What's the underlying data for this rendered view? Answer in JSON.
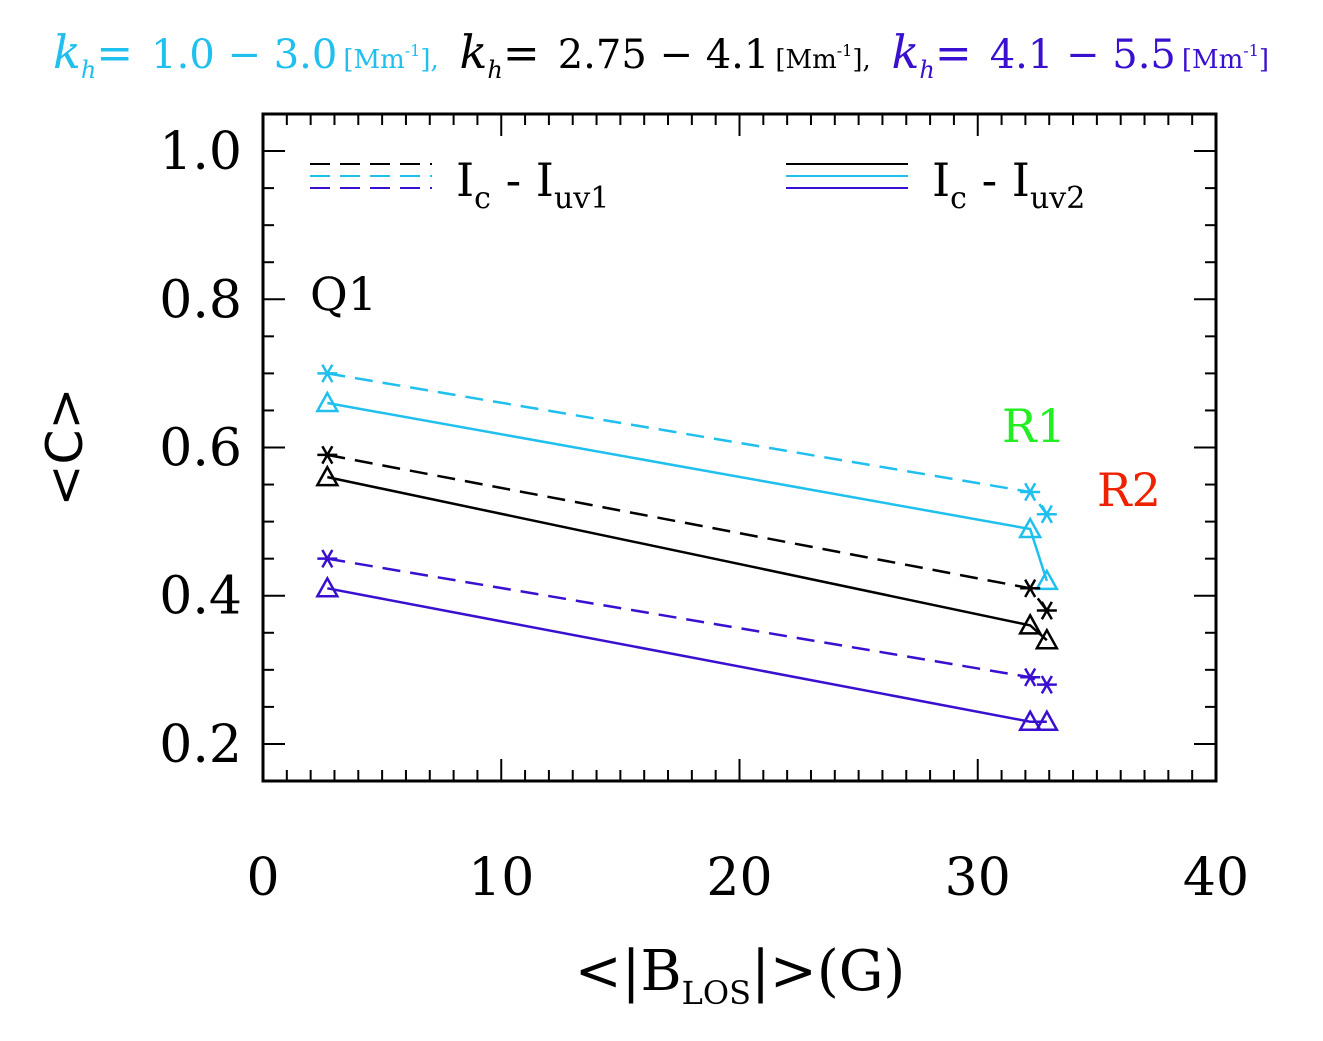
{
  "chart_data": {
    "type": "line",
    "title_segments": [
      {
        "k": "k",
        "sub": "h",
        "eq": "=",
        "range": "1.0 − 3.0",
        "unit": "[Mm",
        "unit_sup": "-1",
        "unit_close": "],",
        "color": "#1fbfee"
      },
      {
        "k": "k",
        "sub": "h",
        "eq": "=",
        "range": "2.75 − 4.1",
        "unit": "[Mm",
        "unit_sup": "-1",
        "unit_close": "],",
        "color": "#000000"
      },
      {
        "k": "k",
        "sub": "h",
        "eq": "=",
        "range": "4.1 − 5.5",
        "unit": "[Mm",
        "unit_sup": "-1",
        "unit_close": "]",
        "color": "#3a10d0"
      }
    ],
    "xlabel": {
      "pre": "<|B",
      "sub": "LOS",
      "post": "|>(G)"
    },
    "ylabel": "<C>",
    "xlim": [
      0,
      40
    ],
    "ylim": [
      0.15,
      1.05
    ],
    "xticks": [
      0,
      10,
      20,
      30,
      40
    ],
    "xtick_labels": [
      "0",
      "10",
      "20",
      "30",
      "40"
    ],
    "yticks": [
      0.2,
      0.4,
      0.6,
      0.8,
      1.0
    ],
    "ytick_labels": [
      "0.2",
      "0.4",
      "0.6",
      "0.8",
      "1.0"
    ],
    "legend": [
      {
        "label_main": "I",
        "label_sub1": "c",
        "label_mid": " - I",
        "label_sub2": "uv1",
        "style": "dashed"
      },
      {
        "label_main": "I",
        "label_sub1": "c",
        "label_mid": " - I",
        "label_sub2": "uv2",
        "style": "solid"
      }
    ],
    "region_labels": [
      {
        "text": "Q1",
        "color": "#000000"
      },
      {
        "text": "R1",
        "color": "#22ee22"
      },
      {
        "text": "R2",
        "color": "#ee2200"
      }
    ],
    "series": [
      {
        "name": "kh 1.0-3.0 Ic-Iuv1",
        "color": "#1fbfee",
        "style": "dashed",
        "marker": "star",
        "x": [
          2.7,
          32.2,
          32.9
        ],
        "y": [
          0.7,
          0.54,
          0.51
        ]
      },
      {
        "name": "kh 1.0-3.0 Ic-Iuv2",
        "color": "#1fbfee",
        "style": "solid",
        "marker": "triangle",
        "x": [
          2.7,
          32.2,
          32.9
        ],
        "y": [
          0.66,
          0.49,
          0.42
        ]
      },
      {
        "name": "kh 2.75-4.1 Ic-Iuv1",
        "color": "#000000",
        "style": "dashed",
        "marker": "star",
        "x": [
          2.7,
          32.2,
          32.9
        ],
        "y": [
          0.59,
          0.41,
          0.38
        ]
      },
      {
        "name": "kh 2.75-4.1 Ic-Iuv2",
        "color": "#000000",
        "style": "solid",
        "marker": "triangle",
        "x": [
          2.7,
          32.2,
          32.9
        ],
        "y": [
          0.56,
          0.36,
          0.34
        ]
      },
      {
        "name": "kh 4.1-5.5 Ic-Iuv1",
        "color": "#3a10d0",
        "style": "dashed",
        "marker": "star",
        "x": [
          2.7,
          32.2,
          32.9
        ],
        "y": [
          0.45,
          0.29,
          0.28
        ]
      },
      {
        "name": "kh 4.1-5.5 Ic-Iuv2",
        "color": "#3a10d0",
        "style": "solid",
        "marker": "triangle",
        "x": [
          2.7,
          32.2,
          32.9
        ],
        "y": [
          0.41,
          0.23,
          0.23
        ]
      }
    ]
  }
}
